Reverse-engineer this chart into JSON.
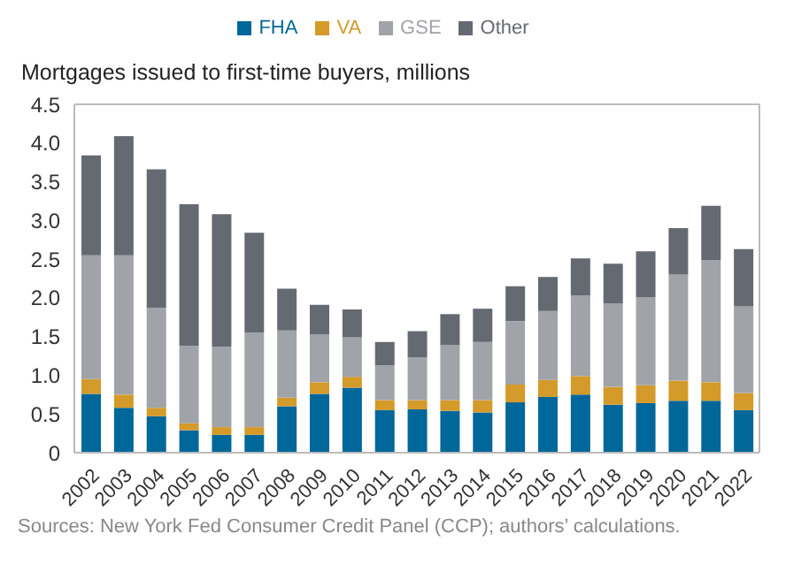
{
  "chart_data": {
    "type": "bar",
    "title": "Mortgages issued to first-time buyers, millions",
    "stacked": true,
    "legend": "top",
    "categories": [
      "2002",
      "2003",
      "2004",
      "2005",
      "2006",
      "2007",
      "2008",
      "2009",
      "2010",
      "2011",
      "2012",
      "2013",
      "2014",
      "2015",
      "2016",
      "2017",
      "2018",
      "2019",
      "2020",
      "2021",
      "2022"
    ],
    "series": [
      {
        "name": "FHA",
        "color": "#00679a",
        "values": [
          0.76,
          0.58,
          0.47,
          0.29,
          0.23,
          0.23,
          0.6,
          0.76,
          0.84,
          0.55,
          0.56,
          0.54,
          0.52,
          0.65,
          0.72,
          0.75,
          0.62,
          0.64,
          0.67,
          0.67,
          0.55
        ]
      },
      {
        "name": "VA",
        "color": "#d49a2a",
        "values": [
          0.19,
          0.17,
          0.11,
          0.09,
          0.1,
          0.1,
          0.11,
          0.15,
          0.14,
          0.13,
          0.12,
          0.14,
          0.16,
          0.23,
          0.22,
          0.24,
          0.23,
          0.23,
          0.26,
          0.24,
          0.22
        ]
      },
      {
        "name": "GSE",
        "color": "#a0a3a8",
        "values": [
          1.6,
          1.8,
          1.29,
          1.0,
          1.04,
          1.22,
          0.87,
          0.62,
          0.51,
          0.45,
          0.55,
          0.71,
          0.75,
          0.82,
          0.89,
          1.04,
          1.08,
          1.14,
          1.37,
          1.58,
          1.12
        ]
      },
      {
        "name": "Other",
        "color": "#656a72",
        "values": [
          1.29,
          1.54,
          1.79,
          1.83,
          1.71,
          1.29,
          0.54,
          0.38,
          0.36,
          0.3,
          0.34,
          0.4,
          0.43,
          0.45,
          0.44,
          0.48,
          0.51,
          0.59,
          0.6,
          0.7,
          0.74
        ]
      }
    ],
    "ylim": [
      0,
      4.5
    ],
    "yticks": [
      0,
      0.5,
      {
        "value": 1,
        "label": "1.0"
      },
      1.5,
      {
        "value": 2,
        "label": "2.0"
      },
      2.5,
      {
        "value": 3,
        "label": "3.0"
      },
      3.5,
      {
        "value": 4,
        "label": "4.0"
      },
      4.5
    ],
    "annotations": [
      "Sources: New York Fed Consumer Credit Panel (CCP); authors’ calculations."
    ]
  }
}
